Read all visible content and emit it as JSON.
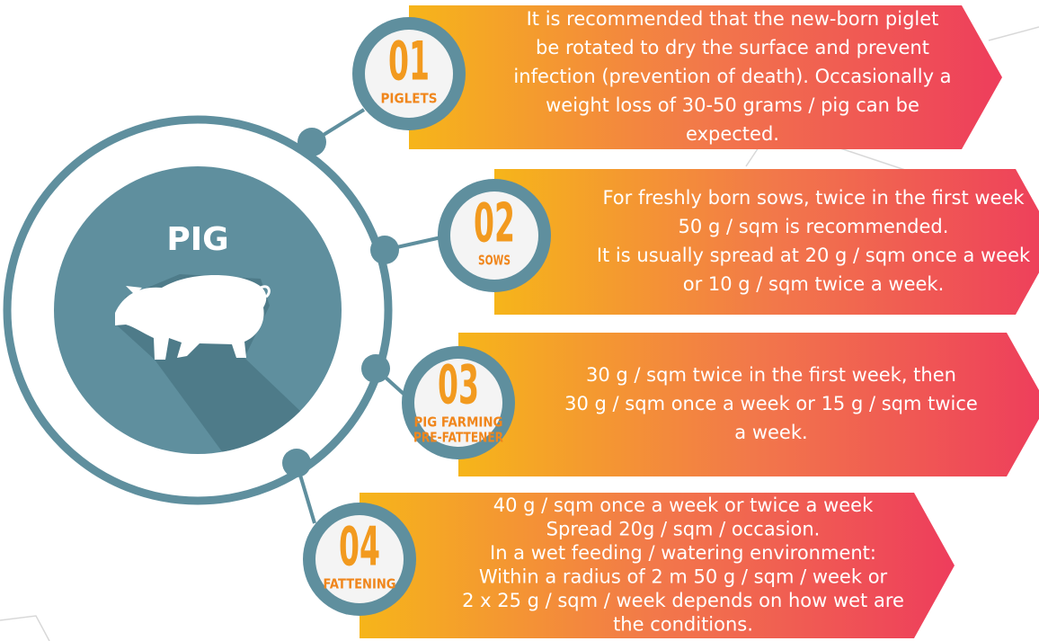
{
  "title": "PIG",
  "items": [
    {
      "number": "01",
      "label": [
        "PIGLETS"
      ],
      "text": [
        "It is recommended that the new-born piglet",
        "be rotated to dry the surface and prevent",
        "infection (prevention of death). Occasionally a",
        "weight loss of 30-50 grams / pig can be",
        "expected."
      ]
    },
    {
      "number": "02",
      "label": [
        "SOWS"
      ],
      "text": [
        "For freshly born sows, twice in the first week",
        "50 g / sqm is recommended.",
        "It is usually spread at 20 g / sqm once a week",
        "or 10 g / sqm twice a week."
      ]
    },
    {
      "number": "03",
      "label": [
        "PIG FARMING",
        "PRE-FATTENER"
      ],
      "text": [
        "30 g / sqm twice in the first week, then",
        "30 g / sqm once a week or 15 g / sqm twice",
        "a week."
      ]
    },
    {
      "number": "04",
      "label": [
        "FATTENING"
      ],
      "text": [
        "40 g / sqm once a week or twice a week",
        "Spread 20g / sqm / occasion.",
        "In a wet feeding / watering environment:",
        "Within a radius of 2 m 50 g / sqm / week or",
        "2 x 25 g / sqm / week depends on how wet are",
        "the conditions."
      ]
    }
  ]
}
